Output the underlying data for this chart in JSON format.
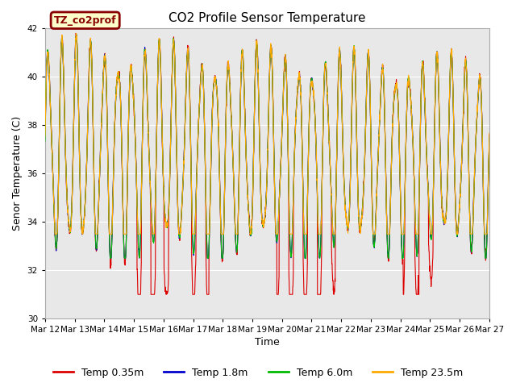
{
  "title": "CO2 Profile Sensor Temperature",
  "ylabel": "Senor Temperature (C)",
  "xlabel": "Time",
  "ylim": [
    30,
    42
  ],
  "yticks": [
    30,
    32,
    34,
    36,
    38,
    40,
    42
  ],
  "legend_label": "TZ_co2prof",
  "legend_box_facecolor": "#ffffcc",
  "legend_box_edgecolor": "#880000",
  "legend_text_color": "#880000",
  "plot_bg_color": "#e8e8e8",
  "fig_bg_color": "#ffffff",
  "series": [
    {
      "label": "Temp 0.35m",
      "color": "#dd0000"
    },
    {
      "label": "Temp 1.8m",
      "color": "#0000cc"
    },
    {
      "label": "Temp 6.0m",
      "color": "#00bb00"
    },
    {
      "label": "Temp 23.5m",
      "color": "#ffaa00"
    }
  ],
  "xtick_labels": [
    "Mar 12",
    "Mar 13",
    "Mar 14",
    "Mar 15",
    "Mar 16",
    "Mar 17",
    "Mar 18",
    "Mar 19",
    "Mar 20",
    "Mar 21",
    "Mar 22",
    "Mar 23",
    "Mar 24",
    "Mar 25",
    "Mar 26",
    "Mar 27"
  ],
  "num_days": 16,
  "start_day": 12
}
